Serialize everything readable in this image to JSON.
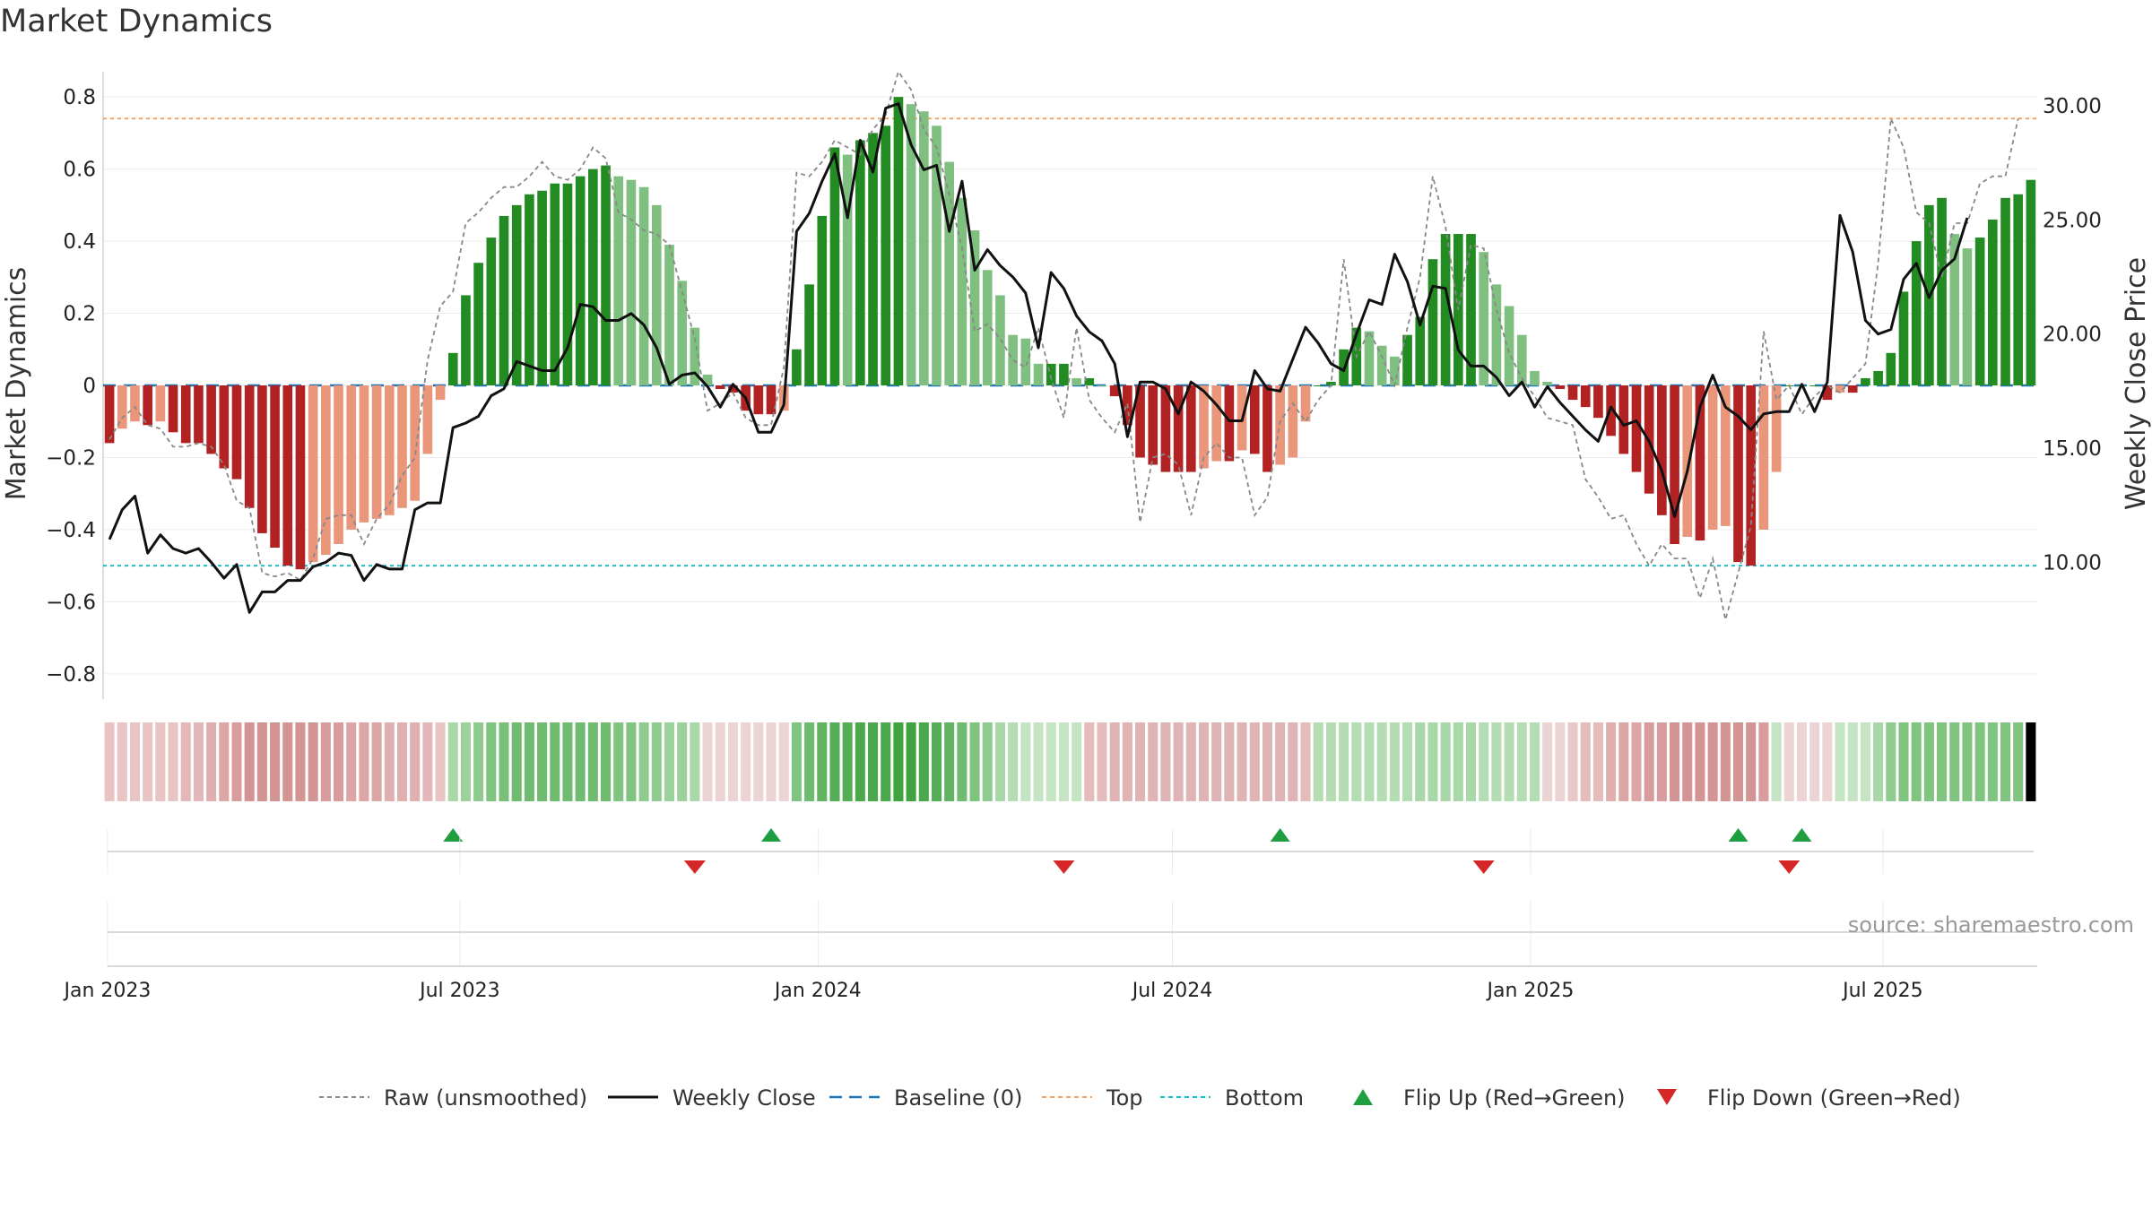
{
  "title": "Market Dynamics",
  "source_text": "source: sharemaestro.com",
  "colors": {
    "strong_green": "#228B22",
    "light_green": "#7FBF7F",
    "strong_red": "#B22222",
    "light_red": "#E9967A",
    "raw": "#888888",
    "close": "#111111",
    "baseline": "#1f77b4",
    "top": "#f4a460",
    "bottom": "#17becf",
    "flip_up": "#1e9e3e",
    "flip_down": "#d62728"
  },
  "chart_data": {
    "type": "bar",
    "title": "Market Dynamics",
    "ylabel": "Market Dynamics",
    "y2label": "Weekly Close Price",
    "ylim": [
      -0.87,
      0.87
    ],
    "y2lim": [
      4.0,
      31.5
    ],
    "yticks": [
      "0.8",
      "0.6",
      "0.4",
      "0.2",
      "0",
      "−0.2",
      "−0.4",
      "−0.6",
      "−0.8"
    ],
    "y2ticks": [
      "30.00",
      "25.00",
      "20.00",
      "15.00",
      "10.00"
    ],
    "x_ticks": [
      "Jan 2023",
      "Jul 2023",
      "Jan 2024",
      "Jul 2024",
      "Jan 2025",
      "Jul 2025"
    ],
    "x_start": "2023-01-02",
    "x_end": "2025-09-15",
    "reference_lines": {
      "top": 0.74,
      "bottom": -0.5,
      "baseline": 0
    },
    "series": [
      {
        "name": "Market Dynamics",
        "values": [
          -0.16,
          -0.12,
          -0.1,
          -0.11,
          -0.1,
          -0.13,
          -0.16,
          -0.16,
          -0.19,
          -0.23,
          -0.26,
          -0.34,
          -0.41,
          -0.45,
          -0.5,
          -0.51,
          -0.49,
          -0.47,
          -0.44,
          -0.4,
          -0.38,
          -0.37,
          -0.36,
          -0.34,
          -0.32,
          -0.19,
          -0.04,
          0.09,
          0.25,
          0.34,
          0.41,
          0.47,
          0.5,
          0.53,
          0.54,
          0.56,
          0.56,
          0.58,
          0.6,
          0.61,
          0.58,
          0.57,
          0.55,
          0.5,
          0.39,
          0.29,
          0.16,
          0.03,
          -0.01,
          -0.02,
          -0.07,
          -0.08,
          -0.08,
          -0.07,
          0.1,
          0.28,
          0.47,
          0.66,
          0.64,
          0.68,
          0.7,
          0.72,
          0.8,
          0.78,
          0.76,
          0.72,
          0.62,
          0.52,
          0.43,
          0.32,
          0.25,
          0.14,
          0.13,
          0.06,
          0.06,
          0.06,
          0.02,
          0.02,
          0.0,
          -0.03,
          -0.11,
          -0.2,
          -0.22,
          -0.24,
          -0.24,
          -0.24,
          -0.23,
          -0.21,
          -0.21,
          -0.18,
          -0.19,
          -0.24,
          -0.22,
          -0.2,
          -0.1,
          0.0,
          0.01,
          0.1,
          0.16,
          0.15,
          0.11,
          0.08,
          0.14,
          0.19,
          0.35,
          0.42,
          0.42,
          0.42,
          0.37,
          0.28,
          0.22,
          0.14,
          0.04,
          0.01,
          -0.01,
          -0.04,
          -0.06,
          -0.09,
          -0.14,
          -0.19,
          -0.24,
          -0.3,
          -0.36,
          -0.44,
          -0.42,
          -0.43,
          -0.4,
          -0.39,
          -0.49,
          -0.5,
          -0.4,
          -0.24,
          0.0,
          0.0,
          0.0,
          -0.04,
          -0.02,
          -0.02,
          0.02,
          0.04,
          0.09,
          0.26,
          0.4,
          0.5,
          0.52,
          0.42,
          0.38,
          0.41,
          0.46,
          0.52,
          0.53,
          0.57
        ]
      },
      {
        "name": "Raw (unsmoothed)",
        "values": [
          -0.15,
          -0.09,
          -0.06,
          -0.11,
          -0.12,
          -0.17,
          -0.17,
          -0.16,
          -0.17,
          -0.22,
          -0.32,
          -0.34,
          -0.52,
          -0.53,
          -0.52,
          -0.54,
          -0.48,
          -0.37,
          -0.36,
          -0.36,
          -0.44,
          -0.37,
          -0.33,
          -0.25,
          -0.2,
          0.07,
          0.22,
          0.26,
          0.45,
          0.48,
          0.52,
          0.55,
          0.55,
          0.58,
          0.62,
          0.58,
          0.57,
          0.6,
          0.66,
          0.63,
          0.48,
          0.46,
          0.43,
          0.42,
          0.39,
          0.26,
          0.13,
          -0.07,
          -0.05,
          -0.02,
          -0.09,
          -0.11,
          -0.11,
          0.05,
          0.59,
          0.58,
          0.62,
          0.68,
          0.66,
          0.64,
          0.71,
          0.75,
          0.87,
          0.82,
          0.71,
          0.66,
          0.53,
          0.38,
          0.15,
          0.17,
          0.13,
          0.07,
          0.05,
          0.16,
          0.02,
          -0.09,
          0.16,
          -0.04,
          -0.09,
          -0.13,
          -0.05,
          -0.38,
          -0.2,
          -0.19,
          -0.22,
          -0.36,
          -0.2,
          -0.16,
          -0.2,
          -0.2,
          -0.36,
          -0.31,
          -0.1,
          -0.05,
          -0.1,
          -0.04,
          0.0,
          0.35,
          0.08,
          0.15,
          0.08,
          0.0,
          0.16,
          0.3,
          0.58,
          0.44,
          0.21,
          0.39,
          0.38,
          0.21,
          0.09,
          0.02,
          -0.03,
          -0.09,
          -0.1,
          -0.11,
          -0.26,
          -0.31,
          -0.37,
          -0.36,
          -0.44,
          -0.5,
          -0.44,
          -0.48,
          -0.48,
          -0.59,
          -0.48,
          -0.65,
          -0.52,
          -0.39,
          0.15,
          -0.04,
          0.0,
          -0.08,
          -0.03,
          -0.0,
          -0.02,
          0.02,
          0.06,
          0.34,
          0.74,
          0.66,
          0.48,
          0.45,
          0.3,
          0.45,
          0.45,
          0.56,
          0.58,
          0.58,
          0.74
        ]
      },
      {
        "name": "Weekly Close",
        "values": [
          11.0,
          12.3,
          12.9,
          10.4,
          11.2,
          10.6,
          10.4,
          10.6,
          10.0,
          9.3,
          9.9,
          7.8,
          8.7,
          8.7,
          9.2,
          9.2,
          9.8,
          10.0,
          10.4,
          10.3,
          9.2,
          9.9,
          9.7,
          9.7,
          12.3,
          12.6,
          12.6,
          15.9,
          16.1,
          16.4,
          17.3,
          17.6,
          18.8,
          18.6,
          18.4,
          18.4,
          19.4,
          21.3,
          21.2,
          20.6,
          20.6,
          20.9,
          20.4,
          19.4,
          17.8,
          18.2,
          18.3,
          17.7,
          16.8,
          17.8,
          17.2,
          15.7,
          15.7,
          16.9,
          24.5,
          25.3,
          26.7,
          27.9,
          25.1,
          28.5,
          27.1,
          29.9,
          30.1,
          28.3,
          27.2,
          27.4,
          24.5,
          26.7,
          22.8,
          23.7,
          23.0,
          22.5,
          21.8,
          19.4,
          22.7,
          22.0,
          20.8,
          20.1,
          19.7,
          18.7,
          15.5,
          17.9,
          17.9,
          17.6,
          16.5,
          17.9,
          17.5,
          16.9,
          16.2,
          16.2,
          18.4,
          17.6,
          17.5,
          18.9,
          20.3,
          19.6,
          18.7,
          18.4,
          20.0,
          21.5,
          21.3,
          23.5,
          22.3,
          20.4,
          22.1,
          22.0,
          19.3,
          18.6,
          18.6,
          18.1,
          17.3,
          17.9,
          16.8,
          17.7,
          17.0,
          16.4,
          15.8,
          15.3,
          16.8,
          16.0,
          16.2,
          15.3,
          14.0,
          12.0,
          14.0,
          16.8,
          18.2,
          16.8,
          16.4,
          15.8,
          16.5,
          16.6,
          16.6,
          17.8,
          16.6,
          17.9,
          25.2,
          23.6,
          20.6,
          20.0,
          20.2,
          22.4,
          23.1,
          21.6,
          22.8,
          23.3,
          25.1
        ]
      }
    ],
    "band_colors": [
      "#e8c4c4",
      "#e8c4c4",
      "#e8c4c4",
      "#e8c4c4",
      "#e8c4c4",
      "#e8c4c4",
      "#e4b8b8",
      "#e4b8b8",
      "#e0b0b0",
      "#dca6a6",
      "#d89c9c",
      "#d49494",
      "#d49494",
      "#d49494",
      "#d49494",
      "#d49494",
      "#d49494",
      "#d89c9c",
      "#d89c9c",
      "#dca6a6",
      "#dca6a6",
      "#dca6a6",
      "#e0b0b0",
      "#e0b0b0",
      "#e0b0b0",
      "#e4b8b8",
      "#e8c4c4",
      "#a8d8a8",
      "#9bd29b",
      "#8fcb8f",
      "#7fc47f",
      "#78c078",
      "#6fbb6f",
      "#6fbb6f",
      "#6fbb6f",
      "#6fbb6f",
      "#6fbb6f",
      "#6fbb6f",
      "#6fbb6f",
      "#6fbb6f",
      "#7fc47f",
      "#7fc47f",
      "#8fcb8f",
      "#8fcb8f",
      "#9bd29b",
      "#9bd29b",
      "#a8d8a8",
      "#ecd4d4",
      "#ecd4d4",
      "#ecd4d4",
      "#ecd4d4",
      "#ecd4d4",
      "#ecd4d4",
      "#ecd4d4",
      "#7fc47f",
      "#6fbb6f",
      "#62b462",
      "#55ad55",
      "#55ad55",
      "#4aa84a",
      "#4aa84a",
      "#4aa84a",
      "#40a340",
      "#40a340",
      "#4aa84a",
      "#55ad55",
      "#62b462",
      "#6fbb6f",
      "#7fc47f",
      "#8fcb8f",
      "#a8d8a8",
      "#b4ddb4",
      "#c4e4c4",
      "#c4e4c4",
      "#c4e4c4",
      "#c4e4c4",
      "#c4e4c4",
      "#e4bcbc",
      "#e4bcbc",
      "#e0b4b4",
      "#e0b4b4",
      "#e0b4b4",
      "#e0b4b4",
      "#e0b4b4",
      "#e0b4b4",
      "#e0b4b4",
      "#e0b4b4",
      "#e0b4b4",
      "#e0b4b4",
      "#e0b4b4",
      "#e0b4b4",
      "#e0b4b4",
      "#e0b4b4",
      "#e0b4b4",
      "#e4bcbc",
      "#b4ddb4",
      "#b4ddb4",
      "#b4ddb4",
      "#b4ddb4",
      "#b4ddb4",
      "#b4ddb4",
      "#b4ddb4",
      "#b4ddb4",
      "#a8d8a8",
      "#a8d8a8",
      "#a8d8a8",
      "#a8d8a8",
      "#a8d8a8",
      "#b4ddb4",
      "#b4ddb4",
      "#b4ddb4",
      "#b4ddb4",
      "#b4ddb4",
      "#ecd4d4",
      "#ecd4d4",
      "#e8c8c8",
      "#e4bcbc",
      "#e4bcbc",
      "#e0b0b0",
      "#dca6a6",
      "#dca6a6",
      "#d89c9c",
      "#d89c9c",
      "#d49494",
      "#d49494",
      "#d49494",
      "#d49494",
      "#d49494",
      "#d49494",
      "#d49494",
      "#d89c9c",
      "#c4e4c4",
      "#ecd4d4",
      "#ecd4d4",
      "#ecd4d4",
      "#ecd4d4",
      "#c4e4c4",
      "#c4e4c4",
      "#c4e4c4",
      "#a8d8a8",
      "#8fcb8f",
      "#7fc47f",
      "#7fc47f",
      "#7fc47f",
      "#7fc47f",
      "#7fc47f",
      "#7fc47f",
      "#7fc47f",
      "#7fc47f",
      "#7fc47f",
      "#7fc47f"
    ],
    "flip_up_indices": [
      27,
      52,
      92,
      128,
      133
    ],
    "flip_down_indices": [
      46,
      75,
      108,
      132
    ],
    "legend": [
      {
        "label": "Raw (unsmoothed)",
        "kind": "dotted-line",
        "color": "#888888"
      },
      {
        "label": "Weekly Close",
        "kind": "line",
        "color": "#111111"
      },
      {
        "label": "Baseline (0)",
        "kind": "dashed-line",
        "color": "#1f77b4"
      },
      {
        "label": "Top",
        "kind": "dotted-line",
        "color": "#f4a460"
      },
      {
        "label": "Bottom",
        "kind": "dotted-line",
        "color": "#17becf"
      },
      {
        "label": "Flip Up (Red→Green)",
        "kind": "triangle-up",
        "color": "#1e9e3e"
      },
      {
        "label": "Flip Down (Green→Red)",
        "kind": "triangle-down",
        "color": "#d62728"
      }
    ]
  }
}
